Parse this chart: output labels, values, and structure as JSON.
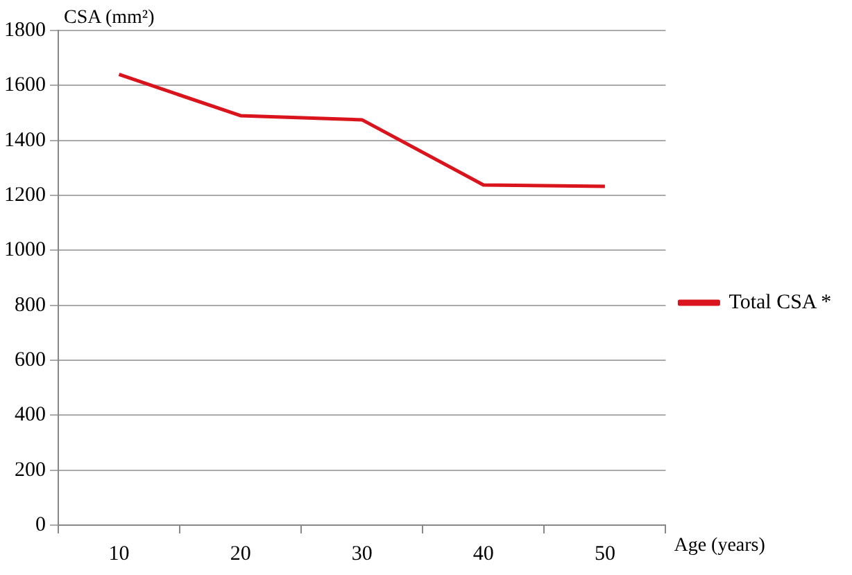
{
  "chart_data": {
    "type": "line",
    "ylabel": "CSA (mm²)",
    "xlabel": "Age (years)",
    "categories": [
      "10",
      "20",
      "30",
      "40",
      "50"
    ],
    "series": [
      {
        "name": "Total CSA *",
        "color": "#d9141c",
        "values": [
          1640,
          1490,
          1475,
          1238,
          1233
        ]
      }
    ],
    "ylim": [
      0,
      1800
    ],
    "yticks": [
      0,
      200,
      400,
      600,
      800,
      1000,
      1200,
      1400,
      1600,
      1800
    ],
    "grid": "y",
    "legend": "right",
    "marker": "none",
    "line_style": "solid"
  }
}
